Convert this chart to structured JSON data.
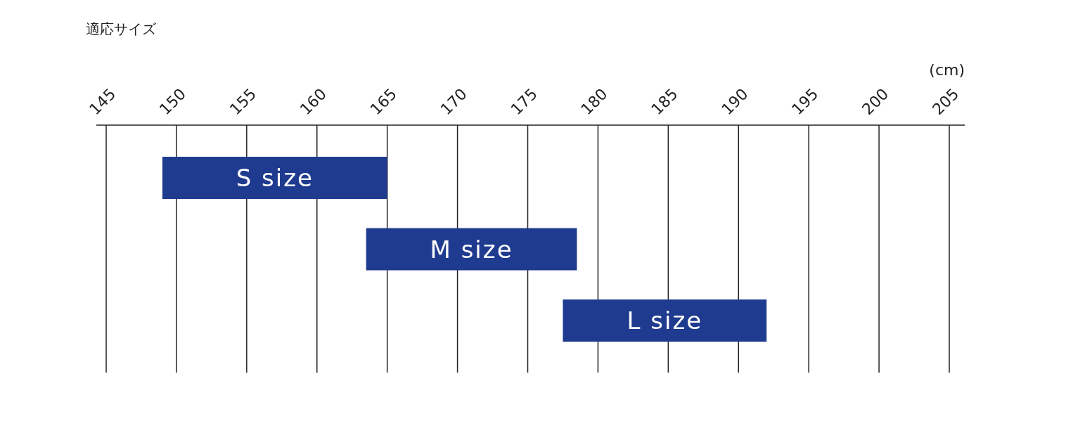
{
  "chart_data": {
    "type": "bar",
    "orientation": "horizontal",
    "title": "適応サイズ",
    "xlabel": "(cm)",
    "categories": [
      "S size",
      "M size",
      "L size"
    ],
    "base": [
      149,
      163.5,
      177.5
    ],
    "values": [
      16,
      15,
      14.5
    ],
    "color": "#1f3b8f",
    "xlim": [
      145,
      205
    ],
    "xticks": [
      145,
      150,
      155,
      160,
      165,
      170,
      175,
      180,
      185,
      190,
      195,
      200,
      205
    ],
    "grid": "x"
  }
}
